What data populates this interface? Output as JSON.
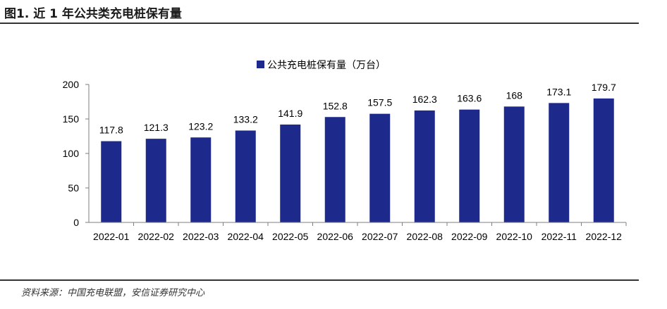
{
  "figure_title": "图1. 近 1 年公共类充电桩保有量",
  "source_note": "资料来源：中国充电联盟，安信证券研究中心",
  "colors": {
    "bar": "#1d2a8c",
    "axis": "#7f7f7f",
    "rule": "#333333"
  },
  "chart_data": {
    "type": "bar",
    "title": "",
    "xlabel": "",
    "ylabel": "",
    "categories": [
      "2022-01",
      "2022-02",
      "2022-03",
      "2022-04",
      "2022-05",
      "2022-06",
      "2022-07",
      "2022-08",
      "2022-09",
      "2022-10",
      "2022-11",
      "2022-12"
    ],
    "series": [
      {
        "name": "公共充电桩保有量（万台）",
        "values": [
          117.8,
          121.3,
          123.2,
          133.2,
          141.9,
          152.8,
          157.5,
          162.3,
          163.6,
          168,
          173.1,
          179.7
        ],
        "labels": [
          "117.8",
          "121.3",
          "123.2",
          "133.2",
          "141.9",
          "152.8",
          "157.5",
          "162.3",
          "163.6",
          "168",
          "173.1",
          "179.7"
        ]
      }
    ],
    "ylim": [
      0,
      200
    ],
    "yticks": [
      0,
      50,
      100,
      150,
      200
    ],
    "legend": "top-center",
    "grid": false
  }
}
